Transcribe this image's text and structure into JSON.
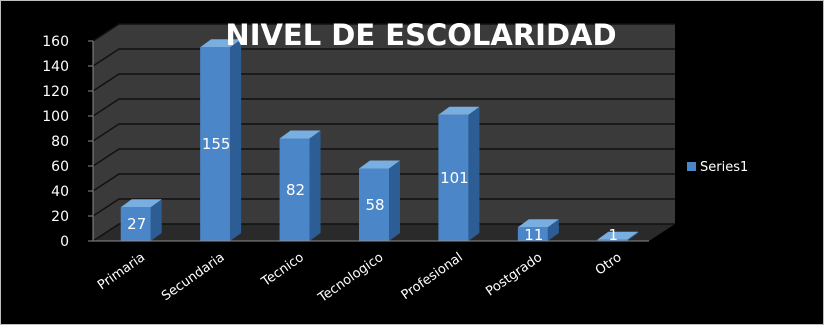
{
  "chart_data": {
    "type": "bar",
    "title": "NIVEL DE ESCOLARIDAD",
    "categories": [
      "Primaria",
      "Secundaria",
      "Tecnico",
      "Tecnologico",
      "Profesional",
      "Postgrado",
      "Otro"
    ],
    "series": [
      {
        "name": "Series1",
        "values": [
          27,
          155,
          82,
          58,
          101,
          11,
          1
        ]
      }
    ],
    "ylim": [
      0,
      160
    ],
    "yticks": [
      0,
      20,
      40,
      60,
      80,
      100,
      120,
      140,
      160
    ],
    "grid": true,
    "legend_position": "right",
    "three_d": true,
    "data_labels": true,
    "colors": {
      "background": "#000000",
      "wall": "#3a3a3a",
      "bar_front": "#4a86c8",
      "bar_side": "#2c5d94",
      "bar_top": "#79aee0",
      "grid": "#111111",
      "text": "#ffffff"
    }
  }
}
